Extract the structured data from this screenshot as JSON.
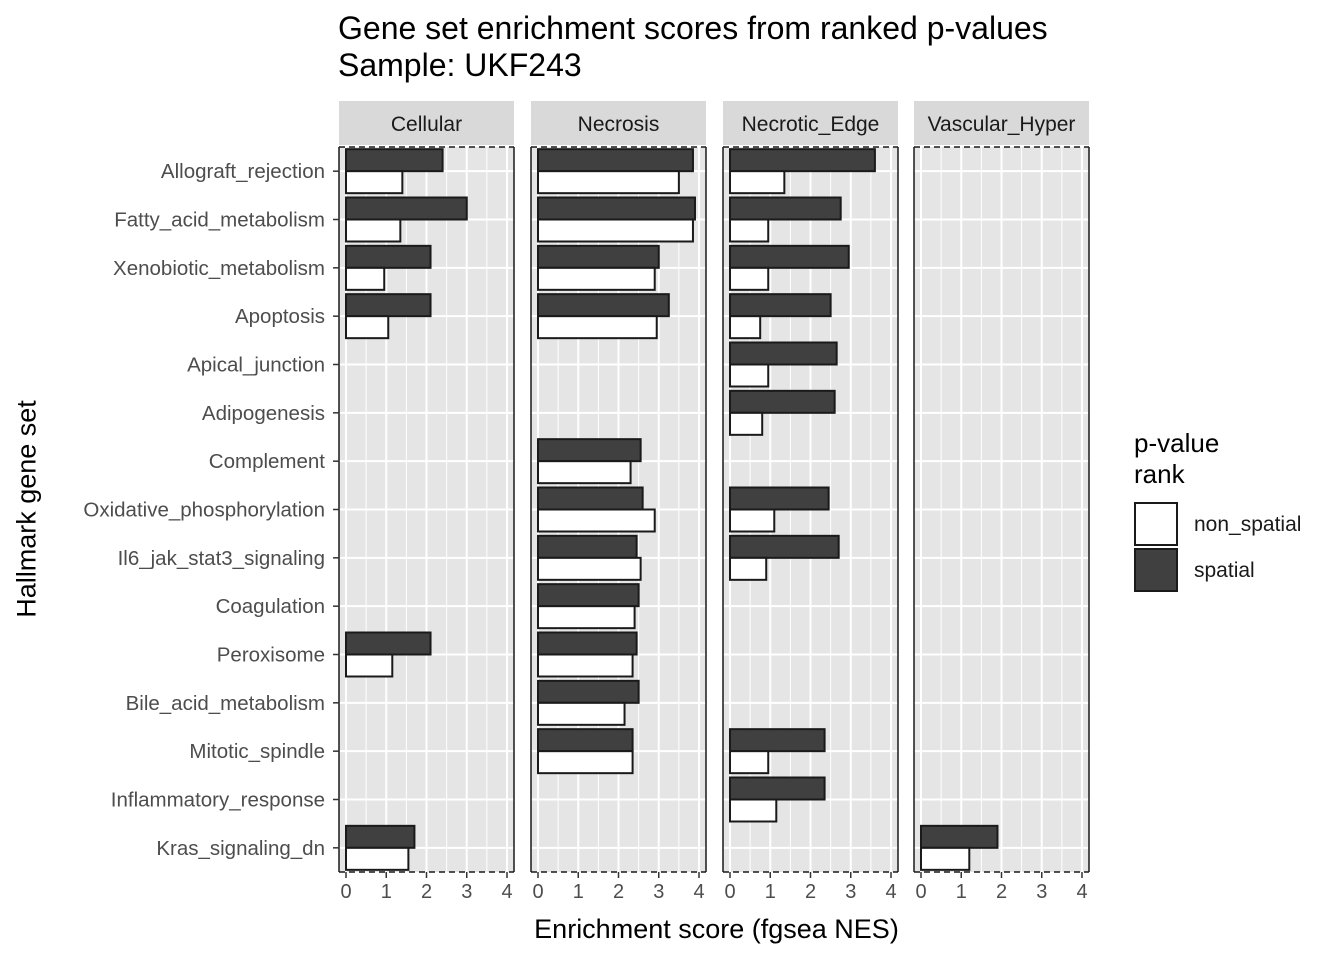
{
  "chart_data": {
    "type": "bar",
    "orientation": "horizontal",
    "title": "Gene set enrichment scores from ranked p-values",
    "subtitle": "Sample: UKF243",
    "xlabel": "Enrichment score (fgsea NES)",
    "ylabel": "Hallmark gene set",
    "xlim": [
      0,
      4
    ],
    "xticks": [
      "0",
      "1",
      "2",
      "3",
      "4"
    ],
    "legend": {
      "title": "p-value\nrank",
      "entries": [
        {
          "label": "non_spatial",
          "color": "#ffffff"
        },
        {
          "label": "spatial",
          "color": "#404040"
        }
      ],
      "position": "right"
    },
    "categories": [
      "Allograft_rejection",
      "Fatty_acid_metabolism",
      "Xenobiotic_metabolism",
      "Apoptosis",
      "Apical_junction",
      "Adipogenesis",
      "Complement",
      "Oxidative_phosphorylation",
      "Il6_jak_stat3_signaling",
      "Coagulation",
      "Peroxisome",
      "Bile_acid_metabolism",
      "Mitotic_spindle",
      "Inflammatory_response",
      "Kras_signaling_dn"
    ],
    "panels": [
      {
        "name": "Cellular",
        "series": [
          {
            "name": "spatial",
            "values": [
              2.4,
              3.0,
              2.1,
              2.1,
              null,
              null,
              null,
              null,
              null,
              null,
              2.1,
              null,
              null,
              null,
              1.7
            ]
          },
          {
            "name": "non_spatial",
            "values": [
              1.4,
              1.35,
              0.95,
              1.05,
              null,
              null,
              null,
              null,
              null,
              null,
              1.15,
              null,
              null,
              null,
              1.55
            ]
          }
        ]
      },
      {
        "name": "Necrosis",
        "series": [
          {
            "name": "spatial",
            "values": [
              3.85,
              3.9,
              3.0,
              3.25,
              null,
              null,
              2.55,
              2.6,
              2.45,
              2.5,
              2.45,
              2.5,
              2.35,
              null,
              null
            ]
          },
          {
            "name": "non_spatial",
            "values": [
              3.5,
              3.85,
              2.9,
              2.95,
              null,
              null,
              2.3,
              2.9,
              2.55,
              2.4,
              2.35,
              2.15,
              2.35,
              null,
              null
            ]
          }
        ]
      },
      {
        "name": "Necrotic_Edge",
        "series": [
          {
            "name": "spatial",
            "values": [
              3.6,
              2.75,
              2.95,
              2.5,
              2.65,
              2.6,
              null,
              2.45,
              2.7,
              null,
              null,
              null,
              2.35,
              2.35,
              null
            ]
          },
          {
            "name": "non_spatial",
            "values": [
              1.35,
              0.95,
              0.95,
              0.75,
              0.95,
              0.8,
              null,
              1.1,
              0.9,
              null,
              null,
              null,
              0.95,
              1.15,
              null
            ]
          }
        ]
      },
      {
        "name": "Vascular_Hyper",
        "series": [
          {
            "name": "spatial",
            "values": [
              null,
              null,
              null,
              null,
              null,
              null,
              null,
              null,
              null,
              null,
              null,
              null,
              null,
              null,
              1.9
            ]
          },
          {
            "name": "non_spatial",
            "values": [
              null,
              null,
              null,
              null,
              null,
              null,
              null,
              null,
              null,
              null,
              null,
              null,
              null,
              null,
              1.2
            ]
          }
        ]
      }
    ],
    "grid": true,
    "colors": {
      "panel_bg": "#e5e5e5",
      "strip_bg": "#d9d9d9",
      "grid": "#ffffff",
      "spatial": "#404040",
      "non_spatial": "#ffffff"
    }
  }
}
